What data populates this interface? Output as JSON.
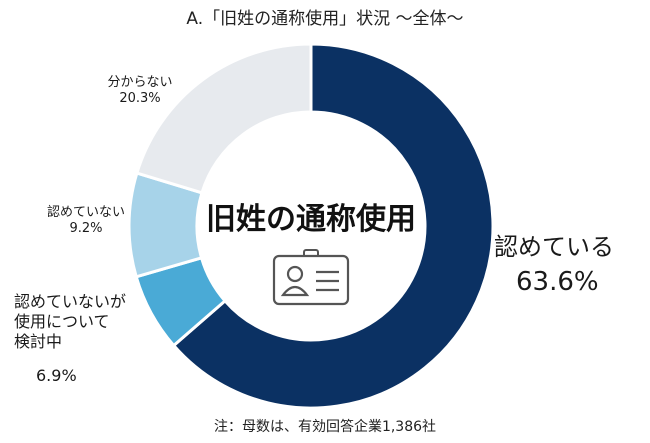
{
  "chart_data": {
    "type": "donut",
    "title": "A.「旧姓の通称使用」状況 ～全体～",
    "center_label": "旧姓の通称使用",
    "slices": [
      {
        "label": "認めている",
        "value": 63.6,
        "value_label": "63.6%",
        "color": "#0b3163"
      },
      {
        "label": "認めていないが使用について検討中",
        "label_lines": [
          "認めていないが",
          "使用について",
          "検討中"
        ],
        "value": 6.9,
        "value_label": "6.9%",
        "color": "#4aaad6"
      },
      {
        "label": "認めていない",
        "value": 9.2,
        "value_label": "9.2%",
        "color": "#a7d3e9"
      },
      {
        "label": "分からない",
        "value": 20.3,
        "value_label": "20.3%",
        "color": "#e7eaee"
      }
    ],
    "start": "12 o'clock",
    "direction": "clockwise",
    "legend": "none",
    "note": "注：母数は、有効回答企業1,386社"
  },
  "icons": {
    "center": "id-badge-icon"
  }
}
